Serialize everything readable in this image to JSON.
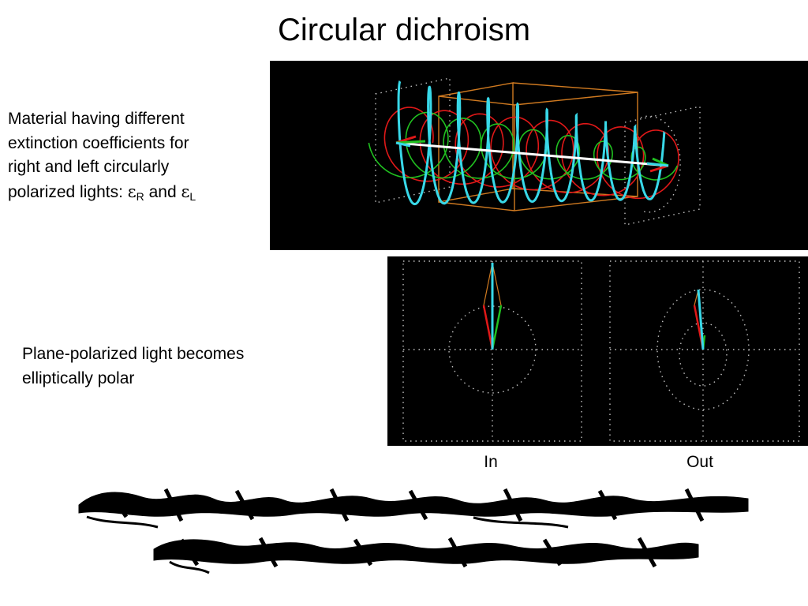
{
  "slide": {
    "title": "Circular dichroism",
    "description_1": {
      "lines": [
        "Material having different",
        "extinction coefficients for",
        "right and left circularly"
      ],
      "last_line_prefix": "polarized lights: ",
      "epsilon_symbol": "ε",
      "sub_right": "R",
      "conjunction": " and ",
      "sub_left": "L"
    },
    "description_2": {
      "lines": [
        "Plane-polarized light becomes",
        "elliptically polar"
      ]
    },
    "captions": {
      "in": "In",
      "out": "Out"
    }
  },
  "colors": {
    "panel_background": "#000000",
    "helix_cyan": "#38d8e8",
    "right_circular_red": "#e01818",
    "left_circular_green": "#20c020",
    "box_orange": "#d07a20",
    "axis_white": "#ffffff",
    "dotted_grey": "#bfbfbf"
  }
}
